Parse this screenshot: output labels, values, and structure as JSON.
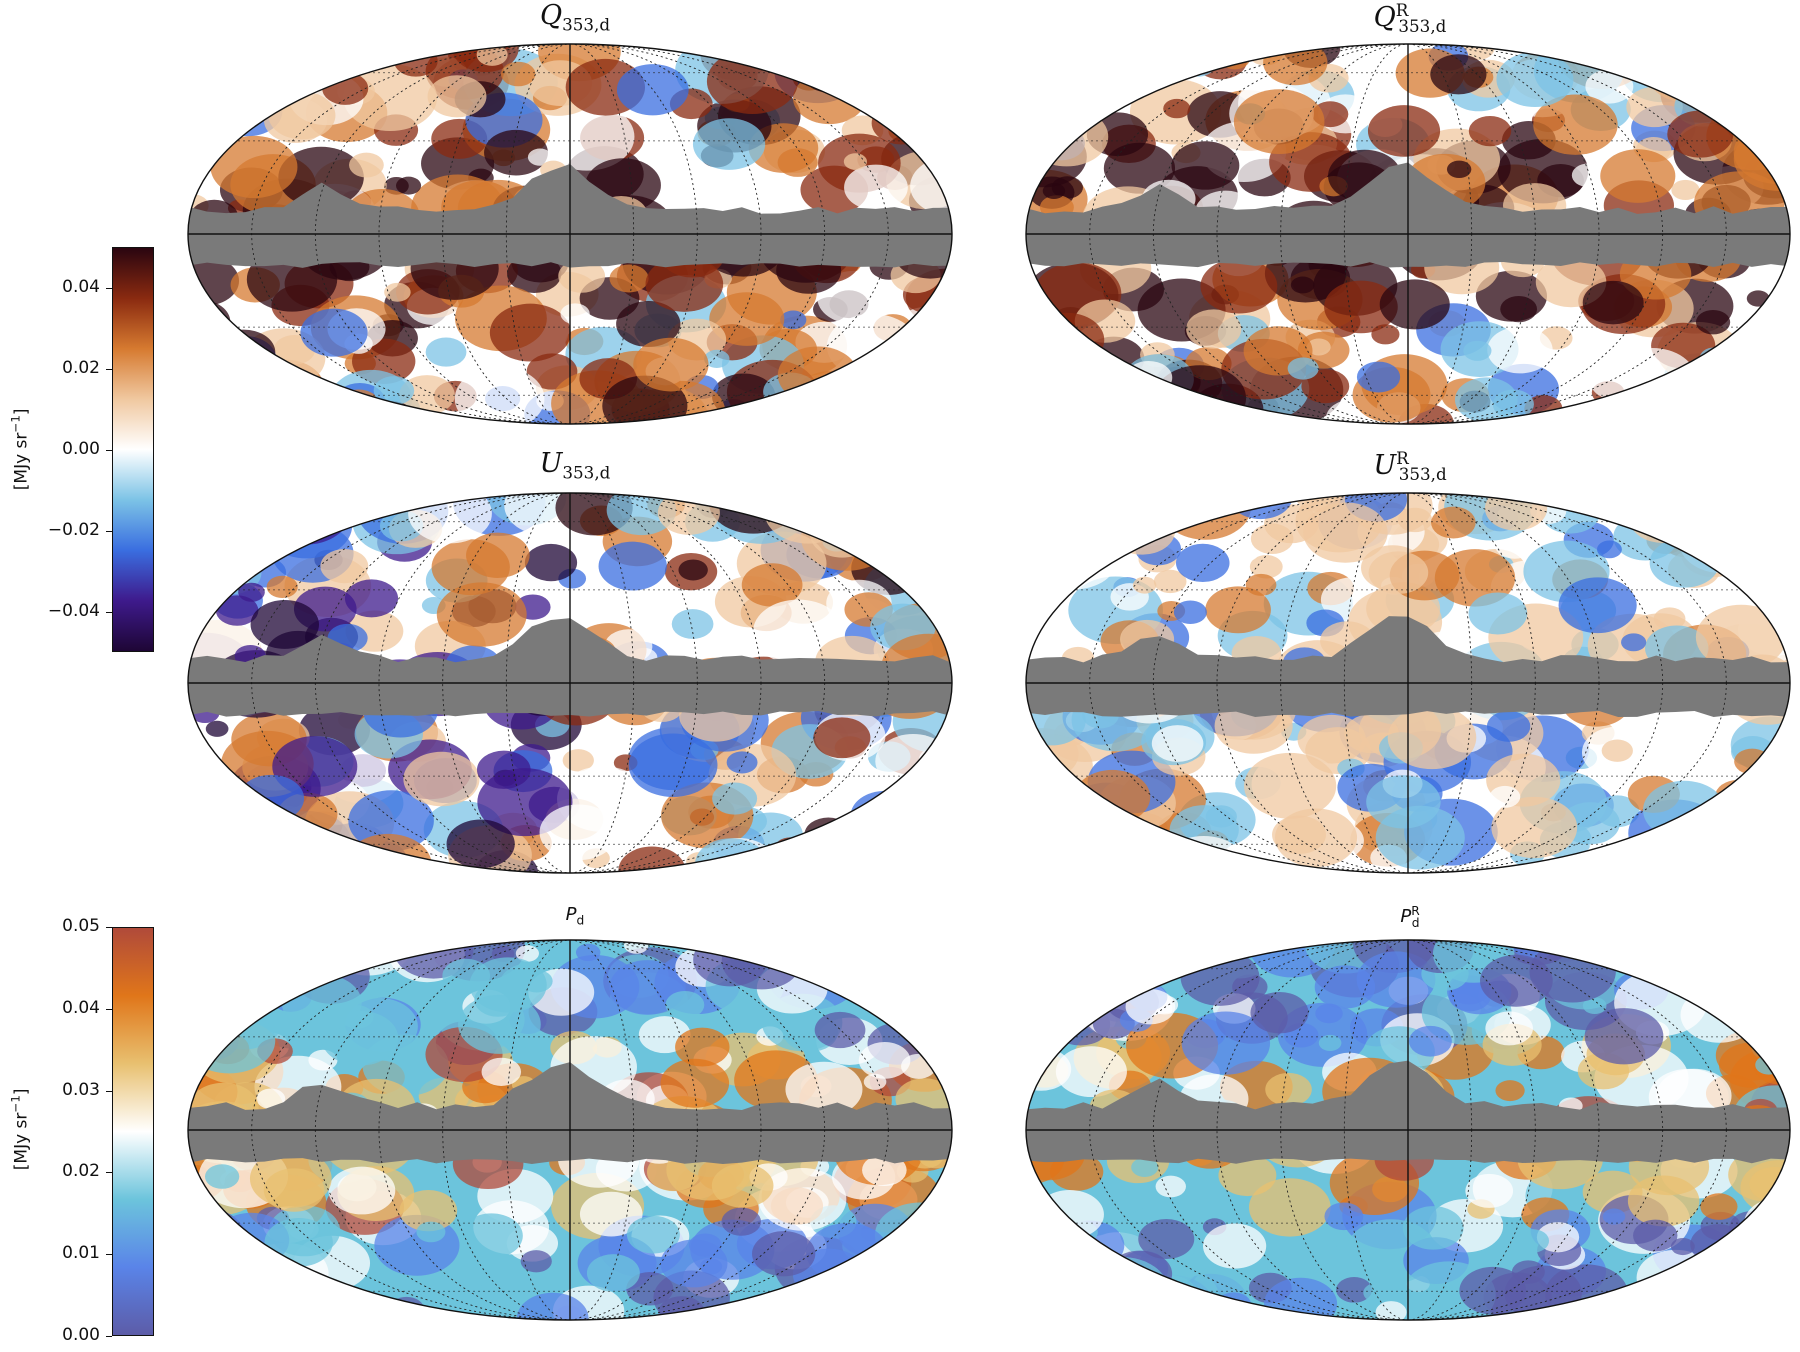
{
  "titles": {
    "q_left": {
      "base": "Q",
      "sub": "353,d",
      "sup": ""
    },
    "q_right": {
      "base": "Q",
      "sub": "353,d",
      "sup": "R"
    },
    "u_left": {
      "base": "U",
      "sub": "353,d",
      "sup": ""
    },
    "u_right": {
      "base": "U",
      "sub": "353,d",
      "sup": "R"
    },
    "p_left": {
      "base": "P",
      "sub": "d",
      "sup": ""
    },
    "p_right": {
      "base": "P",
      "sub": "d",
      "sup": "R"
    }
  },
  "colorbar_top": {
    "label_main": "[MJy sr",
    "label_exp": "−1",
    "label_end": "]",
    "ticks": [
      "0.04",
      "0.02",
      "0.00",
      "−0.02",
      "−0.04"
    ],
    "vmin": -0.05,
    "vmax": 0.05,
    "colors": [
      "#1e0635",
      "#3e1a8c",
      "#3a6ee0",
      "#7cc3e6",
      "#ffffff",
      "#f0c8a0",
      "#d67a30",
      "#8a2a10",
      "#2a0510"
    ]
  },
  "colorbar_bottom": {
    "label_main": "[MJy sr",
    "label_exp": "−1",
    "label_end": "]",
    "ticks": [
      "0.05",
      "0.04",
      "0.03",
      "0.02",
      "0.01",
      "0.00"
    ],
    "vmin": 0.0,
    "vmax": 0.05,
    "colors": [
      "#5c5ca8",
      "#5a84e8",
      "#6cc4dc",
      "#ffffff",
      "#e8c070",
      "#e0761a",
      "#b04a3a"
    ]
  },
  "mask_color": "#7a7a7a"
}
